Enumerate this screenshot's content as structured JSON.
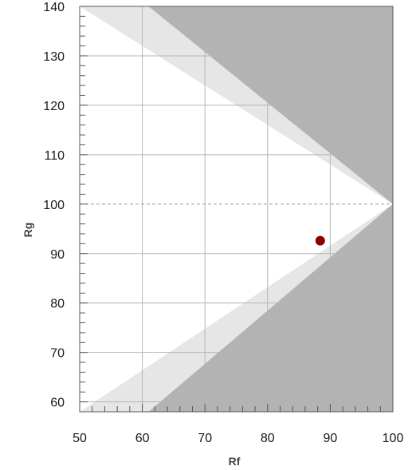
{
  "chart_data": {
    "type": "scatter",
    "title": "",
    "xlabel": "Rf",
    "ylabel": "Rg",
    "xlim": [
      50,
      100
    ],
    "ylim": [
      58,
      140
    ],
    "x_ticks": [
      "50",
      "60",
      "70",
      "80",
      "90",
      "100"
    ],
    "y_ticks": [
      "60",
      "70",
      "80",
      "90",
      "100",
      "110",
      "120",
      "130",
      "140"
    ],
    "reference_line_y": 100,
    "grid": true,
    "point": {
      "x": 88.4,
      "y": 92.6
    },
    "regions": {
      "dark": {
        "color": "#b3b3b3",
        "upper": [
          [
            61,
            140
          ],
          [
            100,
            100
          ]
        ],
        "lower": [
          [
            61,
            58
          ],
          [
            100,
            100
          ]
        ]
      },
      "light": {
        "color": "#e6e6e6",
        "upper": [
          [
            50,
            140
          ],
          [
            100,
            100
          ]
        ],
        "lower": [
          [
            50,
            58
          ],
          [
            100,
            100
          ]
        ]
      }
    },
    "colors": {
      "point": "#8b0000",
      "grid": "#b4b4b4",
      "axis": "#555555"
    }
  }
}
